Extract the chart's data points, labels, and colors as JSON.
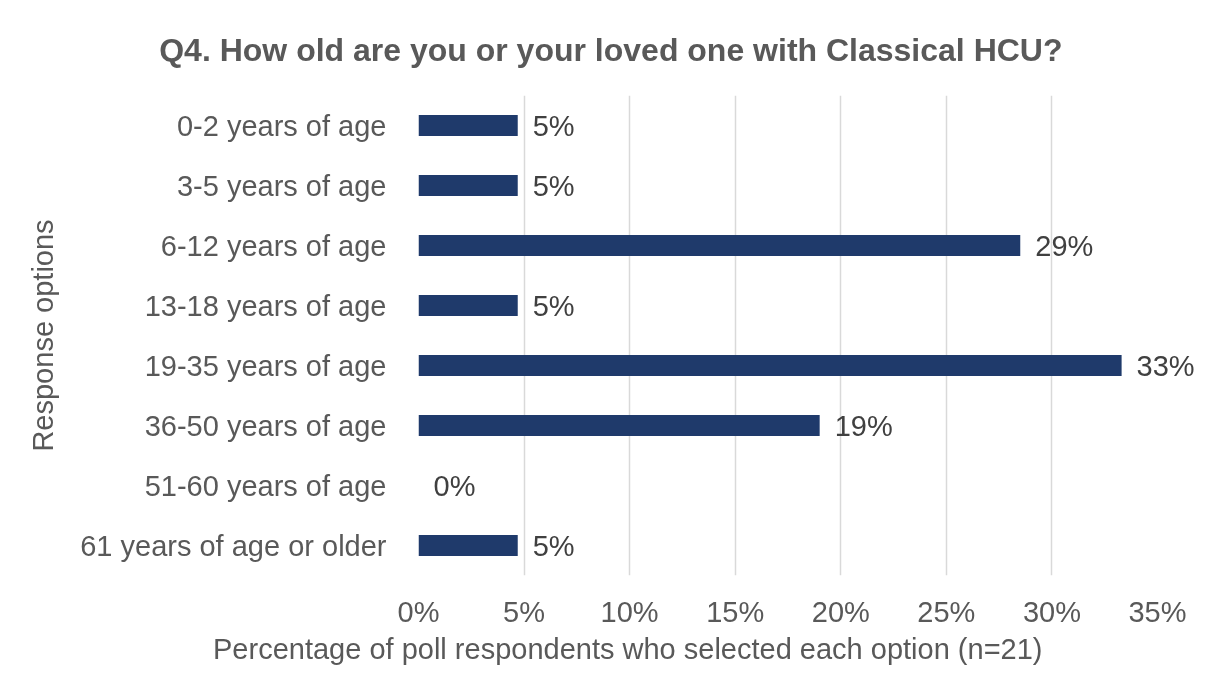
{
  "chart_data": {
    "type": "bar",
    "orientation": "horizontal",
    "title": "Q4. How old are you or your loved one with Classical HCU?",
    "xlabel": "Percentage of poll respondents who selected each option (n=21)",
    "ylabel": "Response options",
    "categories": [
      "0-2 years of age",
      "3-5 years of age",
      "6-12 years of age",
      "13-18 years of age",
      "19-35 years of age",
      "36-50 years of age",
      "51-60 years of age",
      "61 years of age or older"
    ],
    "values": [
      4.7,
      4.7,
      28.5,
      4.7,
      33.3,
      19.0,
      0,
      4.7
    ],
    "color": "#1f3a6b",
    "value_labels": [
      "5%",
      "5%",
      "29%",
      "5%",
      "33%",
      "19%",
      "0%",
      "5%"
    ],
    "xlim": [
      0,
      35
    ],
    "xticks": [
      {
        "value": 0,
        "label": "0%"
      },
      {
        "value": 5,
        "label": "5%"
      },
      {
        "value": 10,
        "label": "10%"
      },
      {
        "value": 15,
        "label": "15%"
      },
      {
        "value": 20,
        "label": "20%"
      },
      {
        "value": 25,
        "label": "25%"
      },
      {
        "value": 30,
        "label": "30%"
      },
      {
        "value": 35,
        "label": "35%"
      }
    ],
    "grid": "x"
  }
}
